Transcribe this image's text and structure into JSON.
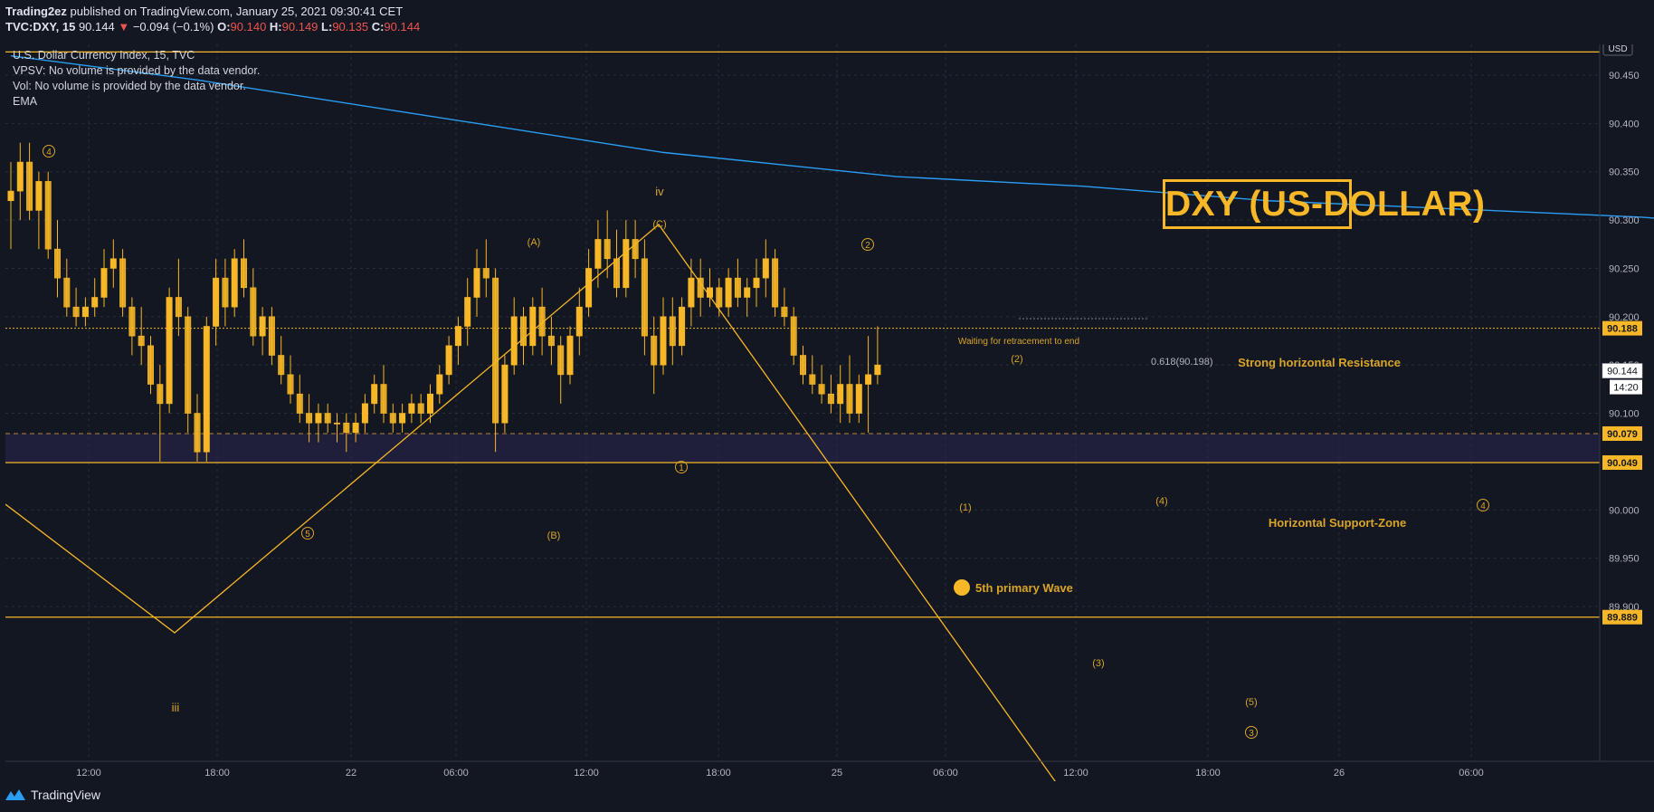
{
  "header": {
    "publisher": "Trading2ez",
    "published_text": "published on TradingView.com, January 25, 2021 09:30:41 CET",
    "symbol": "TVC:DXY, 15",
    "last": "90.144",
    "change": "−0.094 (−0.1%)",
    "o_label": "O:",
    "o_value": "90.140",
    "h_label": "H:",
    "h_value": "90.149",
    "l_label": "L:",
    "l_value": "90.135",
    "c_label": "C:",
    "c_value": "90.144"
  },
  "legend": {
    "title": "U.S. Dollar Currency Index, 15, TVC",
    "vpsv": "VPSV: No volume is provided by the data vendor.",
    "vol": "Vol: No volume is provided by the data vendor.",
    "ema": "EMA"
  },
  "title_box": "DXY (US-DOLLAR)",
  "currency_label": "USD",
  "footer_brand": "TradingView",
  "colors": {
    "background": "#131722",
    "candle": "#f7b726",
    "ema": "#2a9df4",
    "annotation": "#d9a527",
    "label_bg": "#f7b726",
    "support_zone": "#2a2550"
  },
  "chart_data": {
    "type": "candlestick",
    "timeframe": "15",
    "y_range": [
      89.86,
      90.48
    ],
    "price_ticks": [
      "90.450",
      "90.400",
      "90.350",
      "90.300",
      "90.250",
      "90.200",
      "90.150",
      "90.100",
      "90.000",
      "89.950",
      "89.900"
    ],
    "price_labels": [
      {
        "text": "90.188",
        "price": 90.188,
        "style": "highlight"
      },
      {
        "text": "90.144",
        "price": 90.144,
        "style": "last"
      },
      {
        "text": "90.079",
        "price": 90.079,
        "style": "highlight"
      },
      {
        "text": "90.049",
        "price": 90.049,
        "style": "highlight"
      },
      {
        "text": "89.889",
        "price": 89.889,
        "style": "highlight"
      }
    ],
    "countdown": "14:20",
    "time_ticks": [
      "12:00",
      "18:00",
      "22",
      "06:00",
      "12:00",
      "18:00",
      "25",
      "06:00",
      "12:00",
      "18:00",
      "26",
      "06:00"
    ],
    "horizontal_lines": [
      90.474,
      90.049,
      89.889,
      90.188,
      90.079
    ],
    "ema": [
      {
        "bar": 0,
        "price": 90.47
      },
      {
        "bar": 20,
        "price": 90.445
      },
      {
        "bar": 50,
        "price": 90.4
      },
      {
        "bar": 70,
        "price": 90.37
      },
      {
        "bar": 95,
        "price": 90.345
      },
      {
        "bar": 115,
        "price": 90.335
      },
      {
        "bar": 135,
        "price": 90.32
      },
      {
        "bar": 175,
        "price": 90.303
      },
      {
        "bar": 205,
        "price": 90.281
      },
      {
        "bar": 225,
        "price": 90.266
      }
    ],
    "candles_ohlc": [
      [
        90.32,
        90.36,
        90.27,
        90.33
      ],
      [
        90.33,
        90.38,
        90.3,
        90.36
      ],
      [
        90.36,
        90.38,
        90.3,
        90.31
      ],
      [
        90.31,
        90.35,
        90.27,
        90.34
      ],
      [
        90.34,
        90.35,
        90.26,
        90.27
      ],
      [
        90.27,
        90.3,
        90.22,
        90.24
      ],
      [
        90.24,
        90.26,
        90.2,
        90.21
      ],
      [
        90.21,
        90.23,
        90.19,
        90.2
      ],
      [
        90.2,
        90.22,
        90.19,
        90.21
      ],
      [
        90.21,
        90.24,
        90.2,
        90.22
      ],
      [
        90.22,
        90.27,
        90.21,
        90.25
      ],
      [
        90.25,
        90.28,
        90.23,
        90.26
      ],
      [
        90.26,
        90.27,
        90.2,
        90.21
      ],
      [
        90.21,
        90.22,
        90.16,
        90.18
      ],
      [
        90.18,
        90.21,
        90.15,
        90.17
      ],
      [
        90.17,
        90.18,
        90.12,
        90.13
      ],
      [
        90.13,
        90.15,
        90.05,
        90.11
      ],
      [
        90.11,
        90.23,
        90.1,
        90.22
      ],
      [
        90.22,
        90.26,
        90.18,
        90.2
      ],
      [
        90.2,
        90.21,
        90.08,
        90.1
      ],
      [
        90.1,
        90.12,
        90.05,
        90.06
      ],
      [
        90.06,
        90.2,
        90.05,
        90.19
      ],
      [
        90.19,
        90.26,
        90.17,
        90.24
      ],
      [
        90.24,
        90.26,
        90.19,
        90.21
      ],
      [
        90.21,
        90.27,
        90.2,
        90.26
      ],
      [
        90.26,
        90.28,
        90.22,
        90.23
      ],
      [
        90.23,
        90.25,
        90.17,
        90.18
      ],
      [
        90.18,
        90.21,
        90.16,
        90.2
      ],
      [
        90.2,
        90.21,
        90.15,
        90.16
      ],
      [
        90.16,
        90.18,
        90.13,
        90.14
      ],
      [
        90.14,
        90.16,
        90.11,
        90.12
      ],
      [
        90.12,
        90.14,
        90.09,
        90.1
      ],
      [
        90.1,
        90.12,
        90.07,
        90.09
      ],
      [
        90.09,
        90.11,
        90.07,
        90.1
      ],
      [
        90.1,
        90.11,
        90.08,
        90.09
      ],
      [
        90.09,
        90.1,
        90.07,
        90.09
      ],
      [
        90.09,
        90.1,
        90.06,
        90.08
      ],
      [
        90.08,
        90.1,
        90.07,
        90.09
      ],
      [
        90.09,
        90.12,
        90.08,
        90.11
      ],
      [
        90.11,
        90.14,
        90.1,
        90.13
      ],
      [
        90.13,
        90.15,
        90.09,
        90.1
      ],
      [
        90.1,
        90.11,
        90.08,
        90.09
      ],
      [
        90.09,
        90.11,
        90.08,
        90.1
      ],
      [
        90.1,
        90.12,
        90.09,
        90.11
      ],
      [
        90.11,
        90.12,
        90.09,
        90.1
      ],
      [
        90.1,
        90.13,
        90.09,
        90.12
      ],
      [
        90.12,
        90.15,
        90.11,
        90.14
      ],
      [
        90.14,
        90.18,
        90.13,
        90.17
      ],
      [
        90.17,
        90.2,
        90.15,
        90.19
      ],
      [
        90.19,
        90.24,
        90.17,
        90.22
      ],
      [
        90.22,
        90.27,
        90.2,
        90.25
      ],
      [
        90.25,
        90.28,
        90.22,
        90.24
      ],
      [
        90.24,
        90.25,
        90.06,
        90.09
      ],
      [
        90.09,
        90.16,
        90.08,
        90.15
      ],
      [
        90.15,
        90.22,
        90.14,
        90.2
      ],
      [
        90.2,
        90.21,
        90.15,
        90.17
      ],
      [
        90.17,
        90.22,
        90.16,
        90.21
      ],
      [
        90.21,
        90.23,
        90.16,
        90.18
      ],
      [
        90.18,
        90.2,
        90.15,
        90.17
      ],
      [
        90.17,
        90.18,
        90.11,
        90.14
      ],
      [
        90.14,
        90.19,
        90.13,
        90.18
      ],
      [
        90.18,
        90.23,
        90.16,
        90.21
      ],
      [
        90.21,
        90.27,
        90.2,
        90.25
      ],
      [
        90.25,
        90.3,
        90.23,
        90.28
      ],
      [
        90.28,
        90.31,
        90.24,
        90.26
      ],
      [
        90.26,
        90.29,
        90.22,
        90.23
      ],
      [
        90.23,
        90.3,
        90.22,
        90.28
      ],
      [
        90.28,
        90.3,
        90.24,
        90.26
      ],
      [
        90.26,
        90.28,
        90.16,
        90.18
      ],
      [
        90.18,
        90.2,
        90.12,
        90.15
      ],
      [
        90.15,
        90.22,
        90.14,
        90.2
      ],
      [
        90.2,
        90.22,
        90.15,
        90.17
      ],
      [
        90.17,
        90.22,
        90.16,
        90.21
      ],
      [
        90.21,
        90.26,
        90.19,
        90.24
      ],
      [
        90.24,
        90.26,
        90.2,
        90.22
      ],
      [
        90.22,
        90.25,
        90.21,
        90.23
      ],
      [
        90.23,
        90.24,
        90.2,
        90.21
      ],
      [
        90.21,
        90.25,
        90.2,
        90.24
      ],
      [
        90.24,
        90.26,
        90.21,
        90.22
      ],
      [
        90.22,
        90.24,
        90.2,
        90.23
      ],
      [
        90.23,
        90.26,
        90.21,
        90.24
      ],
      [
        90.24,
        90.28,
        90.22,
        90.26
      ],
      [
        90.26,
        90.27,
        90.2,
        90.21
      ],
      [
        90.21,
        90.23,
        90.19,
        90.2
      ],
      [
        90.2,
        90.21,
        90.15,
        90.16
      ],
      [
        90.16,
        90.17,
        90.13,
        90.14
      ],
      [
        90.14,
        90.16,
        90.12,
        90.13
      ],
      [
        90.13,
        90.15,
        90.11,
        90.12
      ],
      [
        90.12,
        90.14,
        90.1,
        90.11
      ],
      [
        90.11,
        90.15,
        90.09,
        90.13
      ],
      [
        90.13,
        90.16,
        90.09,
        90.1
      ],
      [
        90.1,
        90.14,
        90.09,
        90.13
      ],
      [
        90.13,
        90.18,
        90.08,
        90.14
      ],
      [
        90.14,
        90.19,
        90.13,
        90.15
      ]
    ]
  },
  "annotations": {
    "wave_iii": "iii",
    "wave_iv": "iv",
    "wave_A": "(A)",
    "wave_B": "(B)",
    "wave_C": "(C)",
    "wave_1": "(1)",
    "wave_2": "(2)",
    "wave_3": "(3)",
    "wave_4": "(4)",
    "wave_5": "(5)",
    "circ_4": "4",
    "circ_5": "5",
    "circ_1": "1",
    "circ_2": "2",
    "circ_3": "3",
    "circ_4b": "4",
    "waiting": "Waiting for retracement to end",
    "fib": "0.618(90.198)",
    "resistance": "Strong horizontal Resistance",
    "support": "Horizontal Support-Zone",
    "fifth_wave": "5th primary Wave"
  }
}
